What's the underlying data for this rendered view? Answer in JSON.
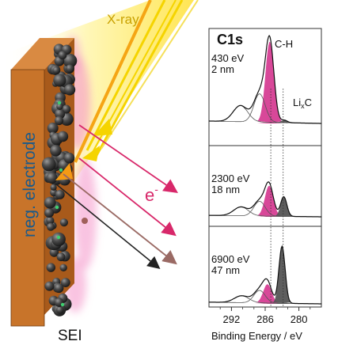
{
  "colors": {
    "electrode_face": "#c8742a",
    "electrode_side": "#a85a1b",
    "xray_yellow": "#f5d400",
    "xray_orange": "#f59a14",
    "arrow_pink": "#d8286a",
    "arrow_brown": "#9a6a64",
    "arrow_black": "#222222",
    "sei_pink": "#f48ac4",
    "fill_magenta": "#d63e93",
    "fill_gray": "#555555",
    "xray_label": "#c9a100",
    "electron_label": "#d8286a"
  },
  "labels": {
    "xray": "X-ray",
    "electron": "e",
    "electron_sup": "-",
    "electrode": "neg. electrode",
    "sei": "SEI"
  },
  "chart_data": {
    "type": "line",
    "title": "C1s",
    "xlabel": "Binding Energy / eV",
    "x_ticks": [
      292,
      286,
      280
    ],
    "xlim": [
      296,
      276
    ],
    "peak_labels": {
      "ch": "C-H",
      "lixc_main": "Li",
      "lixc_sub": "x",
      "lixc_end": "C"
    },
    "reference_lines": [
      285,
      282.8
    ],
    "panels": [
      {
        "energy": "430 eV",
        "depth": "2 nm",
        "components": [
          {
            "name": "C-H",
            "center": 285.2,
            "height": 1.0,
            "fill": "magenta"
          },
          {
            "name": "component-290",
            "center": 290.4,
            "height": 0.2,
            "fill": "none"
          },
          {
            "name": "component-287",
            "center": 287.0,
            "height": 0.35,
            "fill": "none"
          },
          {
            "name": "Li",
            "center": 282.6,
            "height": 0.03,
            "fill": "gray"
          }
        ]
      },
      {
        "energy": "2300 eV",
        "depth": "18 nm",
        "components": [
          {
            "name": "C-H",
            "center": 285.3,
            "height": 0.62,
            "fill": "magenta"
          },
          {
            "name": "component-290",
            "center": 290.3,
            "height": 0.18,
            "fill": "none"
          },
          {
            "name": "component-287",
            "center": 287.0,
            "height": 0.3,
            "fill": "none"
          },
          {
            "name": "Li",
            "center": 282.7,
            "height": 0.4,
            "fill": "gray"
          }
        ]
      },
      {
        "energy": "6900 eV",
        "depth": "47 nm",
        "components": [
          {
            "name": "C-H",
            "center": 285.6,
            "height": 0.33,
            "fill": "magenta"
          },
          {
            "name": "component-290",
            "center": 290.2,
            "height": 0.12,
            "fill": "none"
          },
          {
            "name": "component-287",
            "center": 287.0,
            "height": 0.22,
            "fill": "none"
          },
          {
            "name": "Li",
            "center": 283.0,
            "height": 1.0,
            "fill": "gray"
          }
        ]
      }
    ]
  }
}
